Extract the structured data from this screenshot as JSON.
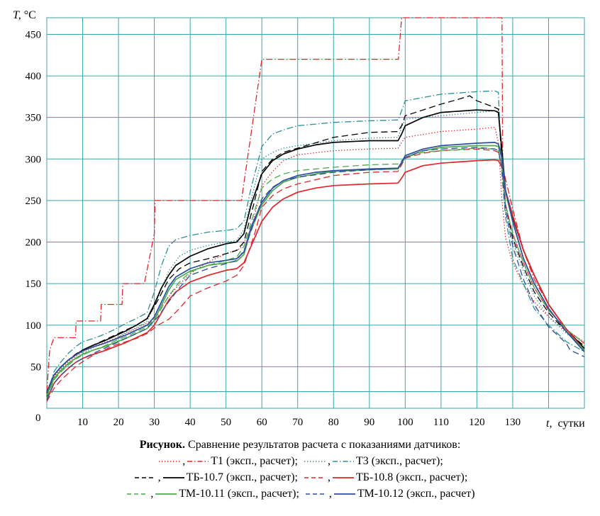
{
  "chart_data": {
    "type": "line",
    "xlabel": "t,",
    "xunit": "сутки",
    "ylabel": "T,",
    "yunit": "°C",
    "origin_label": "0",
    "xlim": [
      0,
      150
    ],
    "ylim": [
      0,
      470
    ],
    "x_ticks": [
      10,
      20,
      30,
      40,
      50,
      60,
      70,
      80,
      90,
      100,
      110,
      120,
      130
    ],
    "y_ticks": [
      50,
      100,
      150,
      200,
      250,
      300,
      350,
      400,
      450
    ],
    "grid": true,
    "grid_color": "#3aa7a6",
    "series": [
      {
        "name": "T1 (эксп.)",
        "kind": "exp",
        "color": "#e0262b",
        "dash": "dotted",
        "x": [
          0,
          1,
          2,
          4,
          6,
          8,
          10,
          13,
          16,
          19,
          22,
          25,
          28,
          30,
          32,
          35,
          40,
          45,
          50,
          54,
          57,
          60,
          63,
          66,
          70,
          80,
          90,
          98,
          99,
          100,
          110,
          120,
          125,
          126,
          127,
          128,
          130,
          133,
          136,
          140,
          145,
          150
        ],
        "y": [
          15,
          28,
          38,
          48,
          56,
          62,
          68,
          74,
          79,
          84,
          90,
          96,
          103,
          108,
          122,
          140,
          162,
          176,
          186,
          192,
          215,
          268,
          285,
          298,
          305,
          310,
          312,
          313,
          320,
          326,
          333,
          336,
          338,
          320,
          250,
          205,
          175,
          148,
          128,
          110,
          93,
          80
        ]
      },
      {
        "name": "T1 (расчет)",
        "kind": "calc",
        "color": "#e0262b",
        "dash": "dashdot",
        "x": [
          0,
          0.8,
          2,
          3,
          3.1,
          8,
          8.2,
          15,
          15.2,
          21,
          21.2,
          27,
          27.2,
          30,
          30.2,
          54,
          54.3,
          60,
          60.2,
          98,
          98.1,
          99,
          99.2,
          127,
          127.2,
          130,
          133,
          136,
          140,
          145,
          150
        ],
        "y": [
          20,
          70,
          85,
          85,
          85,
          85,
          105,
          105,
          125,
          125,
          150,
          150,
          150,
          210,
          250,
          250,
          250,
          420,
          420,
          420,
          420,
          470,
          470,
          470,
          290,
          240,
          190,
          155,
          125,
          95,
          72
        ]
      },
      {
        "name": "T3 (эксп.)",
        "kind": "exp",
        "color": "#2c8f95",
        "dash": "dotted",
        "x": [
          0,
          1,
          2,
          4,
          6,
          8,
          10,
          13,
          16,
          19,
          22,
          25,
          28,
          31,
          34,
          37,
          40,
          45,
          50,
          53,
          55,
          58,
          60,
          63,
          66,
          70,
          80,
          90,
          98,
          99,
          100,
          110,
          120,
          125,
          126,
          127,
          128,
          130,
          133,
          136,
          140,
          145,
          150
        ],
        "y": [
          12,
          24,
          35,
          45,
          52,
          60,
          66,
          73,
          78,
          83,
          91,
          97,
          105,
          133,
          165,
          183,
          190,
          196,
          200,
          202,
          215,
          268,
          300,
          308,
          313,
          316,
          322,
          325,
          326,
          338,
          348,
          352,
          356,
          358,
          355,
          300,
          240,
          200,
          165,
          135,
          110,
          90,
          75
        ]
      },
      {
        "name": "T3 (расчет)",
        "kind": "calc",
        "color": "#2c8f95",
        "dash": "dashdot",
        "x": [
          0,
          1,
          2,
          4,
          6,
          8,
          10,
          13,
          16,
          19,
          22,
          25,
          28,
          30,
          32,
          34,
          36,
          40,
          45,
          50,
          53,
          55,
          57,
          60,
          63,
          66,
          70,
          75,
          80,
          90,
          98,
          99,
          100,
          110,
          120,
          125,
          126,
          127,
          128,
          130,
          133,
          136,
          140,
          145,
          150
        ],
        "y": [
          16,
          30,
          44,
          56,
          66,
          74,
          80,
          84,
          89,
          95,
          102,
          108,
          115,
          140,
          172,
          195,
          203,
          208,
          212,
          214,
          216,
          225,
          265,
          315,
          330,
          335,
          340,
          342,
          344,
          346,
          347,
          358,
          370,
          378,
          381,
          382,
          380,
          280,
          230,
          180,
          150,
          120,
          100,
          80,
          68
        ]
      },
      {
        "name": "ТБ-10.7 (эксп.)",
        "kind": "exp",
        "color": "#000000",
        "dash": "dashed",
        "x": [
          0,
          1,
          2,
          4,
          6,
          8,
          10,
          13,
          16,
          19,
          22,
          25,
          28,
          31,
          34,
          37,
          40,
          45,
          50,
          53,
          55,
          58,
          60,
          63,
          66,
          70,
          80,
          90,
          98,
          99,
          100,
          110,
          115,
          118,
          120,
          125,
          126,
          127,
          128,
          130,
          133,
          136,
          140,
          145,
          150
        ],
        "y": [
          14,
          28,
          40,
          50,
          58,
          65,
          70,
          76,
          82,
          88,
          94,
          100,
          108,
          130,
          155,
          168,
          175,
          180,
          186,
          190,
          200,
          250,
          285,
          300,
          308,
          313,
          326,
          332,
          333,
          340,
          352,
          366,
          372,
          376,
          370,
          362,
          360,
          300,
          245,
          205,
          170,
          140,
          115,
          92,
          75
        ]
      },
      {
        "name": "ТБ-10.7 (расчет)",
        "kind": "calc",
        "color": "#000000",
        "dash": "solid",
        "x": [
          0,
          1,
          2,
          4,
          6,
          8,
          10,
          13,
          16,
          19,
          22,
          25,
          28,
          30,
          32,
          34,
          36,
          40,
          45,
          50,
          53,
          55,
          57,
          60,
          63,
          66,
          70,
          75,
          80,
          90,
          98,
          99,
          100,
          105,
          110,
          120,
          125,
          126,
          127,
          128,
          130,
          133,
          136,
          140,
          145,
          150
        ],
        "y": [
          18,
          30,
          40,
          50,
          58,
          64,
          70,
          76,
          81,
          87,
          93,
          100,
          108,
          125,
          145,
          160,
          172,
          183,
          192,
          198,
          200,
          210,
          245,
          282,
          298,
          306,
          312,
          317,
          320,
          322,
          322,
          330,
          340,
          350,
          356,
          359,
          358,
          356,
          310,
          262,
          230,
          190,
          160,
          125,
          95,
          72
        ]
      },
      {
        "name": "ТБ-10.8 (эксп.)",
        "kind": "exp",
        "color": "#e0262b",
        "dash": "dashed",
        "x": [
          0,
          1,
          2,
          4,
          6,
          8,
          10,
          13,
          16,
          19,
          22,
          25,
          28,
          31,
          34,
          37,
          40,
          45,
          50,
          53,
          55,
          58,
          60,
          63,
          66,
          70,
          80,
          90,
          98,
          99,
          100,
          105,
          110,
          120,
          125,
          126,
          127,
          128,
          130,
          133,
          136,
          140,
          145,
          150
        ],
        "y": [
          8,
          16,
          24,
          34,
          42,
          50,
          56,
          64,
          70,
          76,
          80,
          84,
          90,
          100,
          107,
          120,
          135,
          145,
          153,
          160,
          172,
          210,
          242,
          256,
          264,
          270,
          280,
          284,
          285,
          293,
          301,
          307,
          310,
          312,
          310,
          308,
          290,
          245,
          210,
          175,
          145,
          118,
          95,
          78
        ]
      },
      {
        "name": "ТБ-10.8 (расчет)",
        "kind": "calc",
        "color": "#e0262b",
        "dash": "solid",
        "x": [
          0,
          1,
          2,
          4,
          6,
          8,
          10,
          13,
          16,
          19,
          22,
          25,
          28,
          30,
          32,
          34,
          36,
          40,
          45,
          50,
          53,
          55,
          57,
          60,
          63,
          66,
          70,
          75,
          80,
          90,
          98,
          99,
          100,
          105,
          110,
          120,
          125,
          126,
          127,
          128,
          130,
          133,
          136,
          140,
          145,
          150
        ],
        "y": [
          10,
          20,
          30,
          40,
          48,
          55,
          60,
          65,
          69,
          74,
          79,
          85,
          91,
          100,
          115,
          130,
          140,
          152,
          160,
          166,
          168,
          175,
          195,
          225,
          242,
          252,
          260,
          265,
          268,
          270,
          271,
          277,
          284,
          292,
          295,
          298,
          299,
          298,
          290,
          262,
          232,
          190,
          160,
          125,
          95,
          70
        ]
      },
      {
        "name": "ТМ-10.11 (эксп.)",
        "kind": "exp",
        "color": "#4ea94a",
        "dash": "dashed",
        "x": [
          0,
          1,
          2,
          4,
          6,
          8,
          10,
          13,
          16,
          19,
          22,
          25,
          28,
          31,
          34,
          37,
          40,
          45,
          50,
          53,
          55,
          58,
          60,
          63,
          66,
          70,
          80,
          90,
          98,
          99,
          100,
          105,
          110,
          120,
          125,
          126,
          127,
          128,
          130,
          133,
          136,
          140,
          145,
          150
        ],
        "y": [
          12,
          24,
          34,
          44,
          52,
          59,
          64,
          70,
          75,
          81,
          86,
          92,
          98,
          113,
          135,
          152,
          164,
          172,
          178,
          182,
          195,
          238,
          265,
          276,
          282,
          286,
          290,
          293,
          294,
          298,
          302,
          308,
          310,
          313,
          312,
          310,
          290,
          245,
          210,
          175,
          145,
          118,
          95,
          78
        ]
      },
      {
        "name": "ТМ-10.11 (расчет)",
        "kind": "calc",
        "color": "#4ea94a",
        "dash": "solid",
        "x": [
          0,
          1,
          2,
          4,
          6,
          8,
          10,
          13,
          16,
          19,
          22,
          25,
          28,
          30,
          32,
          34,
          36,
          40,
          45,
          50,
          53,
          55,
          57,
          60,
          63,
          66,
          70,
          75,
          80,
          90,
          98,
          99,
          100,
          105,
          110,
          120,
          125,
          126,
          127,
          128,
          130,
          133,
          136,
          140,
          145,
          150
        ],
        "y": [
          16,
          26,
          36,
          46,
          54,
          60,
          65,
          70,
          74,
          79,
          84,
          90,
          96,
          106,
          124,
          142,
          155,
          165,
          172,
          175,
          177,
          185,
          215,
          245,
          262,
          272,
          278,
          282,
          285,
          287,
          288,
          295,
          302,
          310,
          314,
          316,
          316,
          315,
          300,
          260,
          225,
          180,
          150,
          120,
          92,
          70
        ]
      },
      {
        "name": "ТМ-10.12 (эксп.)",
        "kind": "exp",
        "color": "#2e4f9e",
        "dash": "dashed",
        "x": [
          0,
          1,
          2,
          4,
          6,
          8,
          10,
          13,
          16,
          19,
          22,
          25,
          28,
          31,
          34,
          37,
          40,
          45,
          50,
          53,
          55,
          58,
          60,
          63,
          66,
          70,
          80,
          90,
          98,
          99,
          100,
          105,
          110,
          120,
          125,
          126,
          127,
          128,
          130,
          133,
          136,
          140,
          145,
          146,
          150
        ],
        "y": [
          10,
          20,
          30,
          40,
          48,
          55,
          60,
          66,
          72,
          78,
          84,
          90,
          96,
          110,
          128,
          145,
          160,
          168,
          174,
          178,
          190,
          225,
          252,
          266,
          274,
          278,
          284,
          287,
          289,
          295,
          302,
          310,
          312,
          314,
          312,
          310,
          290,
          238,
          195,
          155,
          125,
          98,
          78,
          70,
          62
        ]
      },
      {
        "name": "ТМ-10.12 (расчет)",
        "kind": "calc",
        "color": "#2e4f9e",
        "dash": "solid",
        "x": [
          0,
          1,
          2,
          4,
          6,
          8,
          10,
          13,
          16,
          19,
          22,
          25,
          28,
          30,
          32,
          34,
          36,
          40,
          45,
          50,
          53,
          55,
          57,
          60,
          63,
          66,
          70,
          75,
          80,
          90,
          98,
          99,
          100,
          105,
          110,
          120,
          125,
          126,
          127,
          128,
          130,
          133,
          136,
          140,
          145,
          150
        ],
        "y": [
          20,
          30,
          40,
          50,
          58,
          64,
          69,
          74,
          78,
          83,
          88,
          94,
          100,
          110,
          128,
          146,
          158,
          168,
          175,
          178,
          180,
          188,
          218,
          248,
          265,
          274,
          280,
          284,
          286,
          288,
          289,
          296,
          304,
          312,
          316,
          319,
          320,
          318,
          302,
          262,
          225,
          180,
          150,
          120,
          92,
          68
        ]
      }
    ]
  },
  "caption": {
    "prefix": "Рисунок.",
    "text": "Сравнение результатов расчета с показаниями датчиков:",
    "legend_lines": [
      [
        {
          "swatches": [
            [
              "#e0262b",
              "dotted"
            ],
            [
              "#e0262b",
              "dashdot"
            ]
          ],
          "label": "T1 (эксп., расчет);"
        },
        {
          "swatches": [
            [
              "#2c8f95",
              "dotted"
            ],
            [
              "#2c8f95",
              "dashdot"
            ]
          ],
          "label": "T3 (эксп., расчет);"
        }
      ],
      [
        {
          "swatches": [
            [
              "#000000",
              "dashed"
            ],
            [
              "#000000",
              "solid"
            ]
          ],
          "label": "ТБ-10.7 (эксп., расчет);"
        },
        {
          "swatches": [
            [
              "#e0262b",
              "dashed"
            ],
            [
              "#e0262b",
              "solid"
            ]
          ],
          "label": "ТБ-10.8 (эксп., расчет);"
        }
      ],
      [
        {
          "swatches": [
            [
              "#4ea94a",
              "dashed"
            ],
            [
              "#4ea94a",
              "solid"
            ]
          ],
          "label": "ТМ-10.11 (эксп., расчет);"
        },
        {
          "swatches": [
            [
              "#2e4f9e",
              "dashed"
            ],
            [
              "#2e4f9e",
              "solid"
            ]
          ],
          "label": "ТМ-10.12 (эксп., расчет)"
        }
      ]
    ]
  }
}
